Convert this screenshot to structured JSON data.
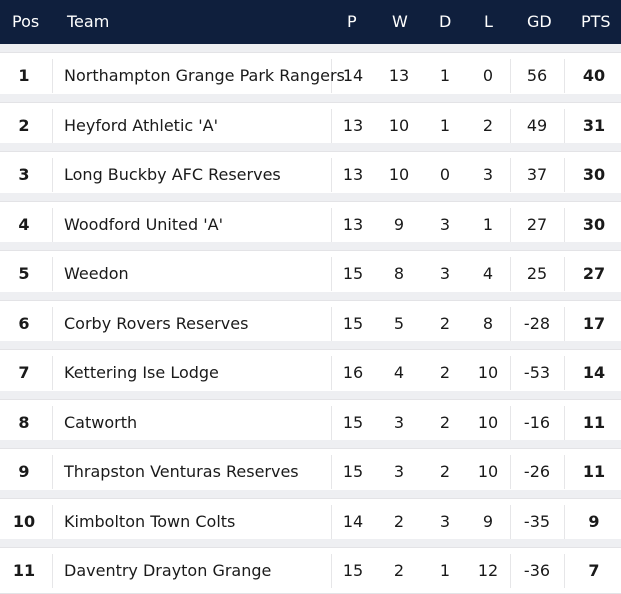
{
  "columns": {
    "pos": "Pos",
    "team": "Team",
    "p": "P",
    "w": "W",
    "d": "D",
    "l": "L",
    "gd": "GD",
    "pts": "PTS"
  },
  "rows": [
    {
      "pos": "1",
      "team": "Northampton Grange Park Rangers",
      "p": "14",
      "w": "13",
      "d": "1",
      "l": "0",
      "gd": "56",
      "pts": "40"
    },
    {
      "pos": "2",
      "team": "Heyford Athletic 'A'",
      "p": "13",
      "w": "10",
      "d": "1",
      "l": "2",
      "gd": "49",
      "pts": "31"
    },
    {
      "pos": "3",
      "team": "Long Buckby AFC Reserves",
      "p": "13",
      "w": "10",
      "d": "0",
      "l": "3",
      "gd": "37",
      "pts": "30"
    },
    {
      "pos": "4",
      "team": "Woodford United 'A'",
      "p": "13",
      "w": "9",
      "d": "3",
      "l": "1",
      "gd": "27",
      "pts": "30"
    },
    {
      "pos": "5",
      "team": "Weedon",
      "p": "15",
      "w": "8",
      "d": "3",
      "l": "4",
      "gd": "25",
      "pts": "27"
    },
    {
      "pos": "6",
      "team": "Corby Rovers Reserves",
      "p": "15",
      "w": "5",
      "d": "2",
      "l": "8",
      "gd": "-28",
      "pts": "17"
    },
    {
      "pos": "7",
      "team": "Kettering Ise Lodge",
      "p": "16",
      "w": "4",
      "d": "2",
      "l": "10",
      "gd": "-53",
      "pts": "14"
    },
    {
      "pos": "8",
      "team": "Catworth",
      "p": "15",
      "w": "3",
      "d": "2",
      "l": "10",
      "gd": "-16",
      "pts": "11"
    },
    {
      "pos": "9",
      "team": "Thrapston Venturas Reserves",
      "p": "15",
      "w": "3",
      "d": "2",
      "l": "10",
      "gd": "-26",
      "pts": "11"
    },
    {
      "pos": "10",
      "team": "Kimbolton Town Colts",
      "p": "14",
      "w": "2",
      "d": "3",
      "l": "9",
      "gd": "-35",
      "pts": "9"
    },
    {
      "pos": "11",
      "team": "Daventry Drayton Grange",
      "p": "15",
      "w": "2",
      "d": "1",
      "l": "12",
      "gd": "-36",
      "pts": "7"
    }
  ],
  "colors": {
    "header_bg": "#0f1f3d",
    "header_text": "#ffffff",
    "row_band": "#eeeff2"
  }
}
